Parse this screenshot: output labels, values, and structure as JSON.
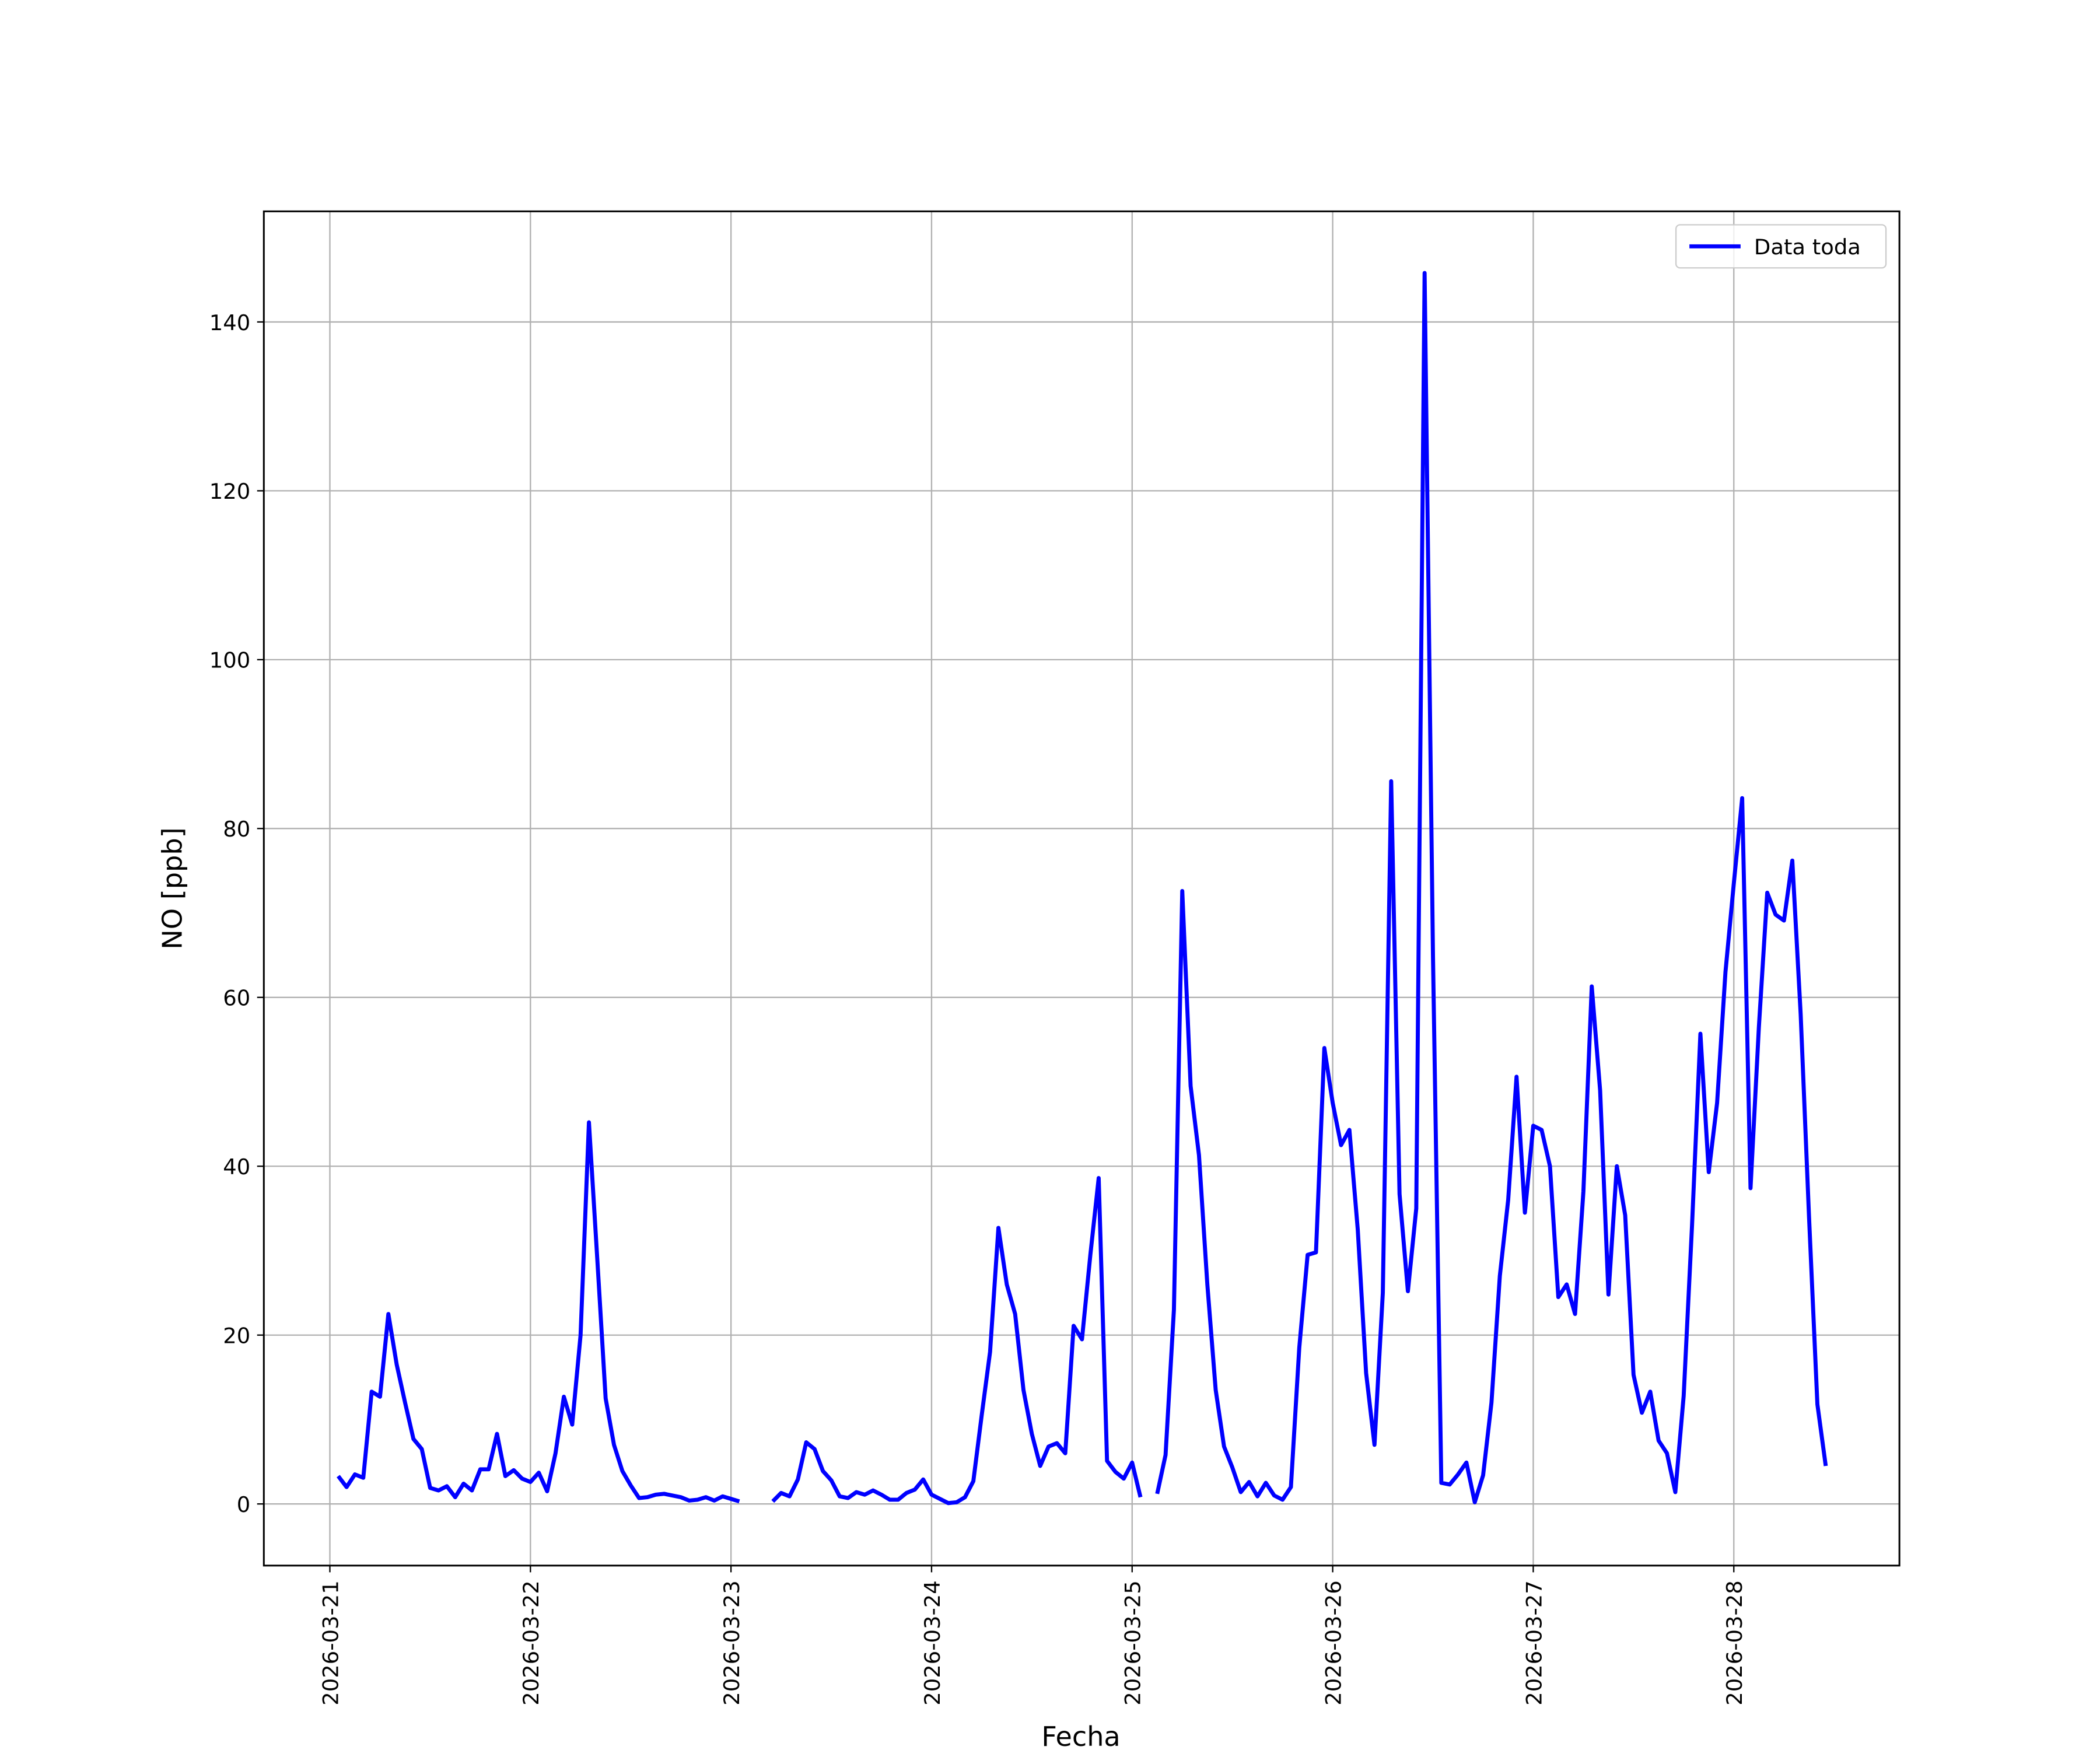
{
  "chart_data": {
    "type": "line",
    "xlabel": "Fecha",
    "ylabel": "NO [ppb]",
    "x": [
      "2026-03-21 01:00",
      "2026-03-21 02:00",
      "2026-03-21 03:00",
      "2026-03-21 04:00",
      "2026-03-21 05:00",
      "2026-03-21 06:00",
      "2026-03-21 07:00",
      "2026-03-21 08:00",
      "2026-03-21 09:00",
      "2026-03-21 10:00",
      "2026-03-21 11:00",
      "2026-03-21 12:00",
      "2026-03-21 13:00",
      "2026-03-21 14:00",
      "2026-03-21 15:00",
      "2026-03-21 16:00",
      "2026-03-21 17:00",
      "2026-03-21 18:00",
      "2026-03-21 19:00",
      "2026-03-21 20:00",
      "2026-03-21 21:00",
      "2026-03-21 22:00",
      "2026-03-21 23:00",
      "2026-03-22 00:00",
      "2026-03-22 01:00",
      "2026-03-22 02:00",
      "2026-03-22 03:00",
      "2026-03-22 04:00",
      "2026-03-22 05:00",
      "2026-03-22 06:00",
      "2026-03-22 07:00",
      "2026-03-22 08:00",
      "2026-03-22 09:00",
      "2026-03-22 10:00",
      "2026-03-22 11:00",
      "2026-03-22 12:00",
      "2026-03-22 13:00",
      "2026-03-22 14:00",
      "2026-03-22 15:00",
      "2026-03-22 16:00",
      "2026-03-22 17:00",
      "2026-03-22 18:00",
      "2026-03-22 19:00",
      "2026-03-22 20:00",
      "2026-03-22 21:00",
      "2026-03-22 22:00",
      "2026-03-22 23:00",
      "2026-03-23 00:00",
      "2026-03-23 01:00",
      "2026-03-23 02:00",
      "2026-03-23 03:00",
      "2026-03-23 04:00",
      "2026-03-23 05:00",
      "2026-03-23 06:00",
      "2026-03-23 07:00",
      "2026-03-23 08:00",
      "2026-03-23 09:00",
      "2026-03-23 10:00",
      "2026-03-23 11:00",
      "2026-03-23 12:00",
      "2026-03-23 13:00",
      "2026-03-23 14:00",
      "2026-03-23 15:00",
      "2026-03-23 16:00",
      "2026-03-23 17:00",
      "2026-03-23 18:00",
      "2026-03-23 19:00",
      "2026-03-23 20:00",
      "2026-03-23 21:00",
      "2026-03-23 22:00",
      "2026-03-23 23:00",
      "2026-03-24 00:00",
      "2026-03-24 01:00",
      "2026-03-24 02:00",
      "2026-03-24 03:00",
      "2026-03-24 04:00",
      "2026-03-24 05:00",
      "2026-03-24 06:00",
      "2026-03-24 07:00",
      "2026-03-24 08:00",
      "2026-03-24 09:00",
      "2026-03-24 10:00",
      "2026-03-24 11:00",
      "2026-03-24 12:00",
      "2026-03-24 13:00",
      "2026-03-24 14:00",
      "2026-03-24 15:00",
      "2026-03-24 16:00",
      "2026-03-24 17:00",
      "2026-03-24 18:00",
      "2026-03-24 19:00",
      "2026-03-24 20:00",
      "2026-03-24 21:00",
      "2026-03-24 22:00",
      "2026-03-24 23:00",
      "2026-03-25 00:00",
      "2026-03-25 01:00",
      "2026-03-25 02:00",
      "2026-03-25 03:00",
      "2026-03-25 04:00",
      "2026-03-25 05:00",
      "2026-03-25 06:00",
      "2026-03-25 07:00",
      "2026-03-25 08:00",
      "2026-03-25 09:00",
      "2026-03-25 10:00",
      "2026-03-25 11:00",
      "2026-03-25 12:00",
      "2026-03-25 13:00",
      "2026-03-25 14:00",
      "2026-03-25 15:00",
      "2026-03-25 16:00",
      "2026-03-25 17:00",
      "2026-03-25 18:00",
      "2026-03-25 19:00",
      "2026-03-25 20:00",
      "2026-03-25 21:00",
      "2026-03-25 22:00",
      "2026-03-25 23:00",
      "2026-03-26 00:00",
      "2026-03-26 01:00",
      "2026-03-26 02:00",
      "2026-03-26 03:00",
      "2026-03-26 04:00",
      "2026-03-26 05:00",
      "2026-03-26 06:00",
      "2026-03-26 07:00",
      "2026-03-26 08:00",
      "2026-03-26 09:00",
      "2026-03-26 10:00",
      "2026-03-26 11:00",
      "2026-03-26 12:00",
      "2026-03-26 13:00",
      "2026-03-26 14:00",
      "2026-03-26 15:00",
      "2026-03-26 16:00",
      "2026-03-26 17:00",
      "2026-03-26 18:00",
      "2026-03-26 19:00",
      "2026-03-26 20:00",
      "2026-03-26 21:00",
      "2026-03-26 22:00",
      "2026-03-26 23:00",
      "2026-03-27 00:00",
      "2026-03-27 01:00",
      "2026-03-27 02:00",
      "2026-03-27 03:00",
      "2026-03-27 04:00",
      "2026-03-27 05:00",
      "2026-03-27 06:00",
      "2026-03-27 07:00",
      "2026-03-27 08:00",
      "2026-03-27 09:00",
      "2026-03-27 10:00",
      "2026-03-27 11:00",
      "2026-03-27 12:00",
      "2026-03-27 13:00",
      "2026-03-27 14:00",
      "2026-03-27 15:00",
      "2026-03-27 16:00",
      "2026-03-27 17:00",
      "2026-03-27 18:00",
      "2026-03-27 19:00",
      "2026-03-27 20:00",
      "2026-03-27 21:00",
      "2026-03-27 22:00",
      "2026-03-27 23:00",
      "2026-03-28 00:00",
      "2026-03-28 01:00",
      "2026-03-28 02:00",
      "2026-03-28 03:00",
      "2026-03-28 04:00",
      "2026-03-28 05:00",
      "2026-03-28 06:00",
      "2026-03-28 07:00",
      "2026-03-28 08:00",
      "2026-03-28 09:00",
      "2026-03-28 10:00",
      "2026-03-28 11:00"
    ],
    "series": [
      {
        "name": "Data toda",
        "color": "#0000ff",
        "values": [
          3.3,
          2.0,
          3.5,
          3.1,
          13.3,
          12.7,
          22.5,
          16.5,
          12,
          7.7,
          6.5,
          1.9,
          1.6,
          2.1,
          0.8,
          2.4,
          1.6,
          4.1,
          4.1,
          8.3,
          3.3,
          4.0,
          3.0,
          2.6,
          3.7,
          1.5,
          6,
          12.7,
          9.4,
          20,
          45.2,
          29,
          12.5,
          7,
          3.9,
          2.2,
          0.7,
          0.8,
          1.1,
          1.2,
          1.0,
          0.8,
          0.4,
          0.5,
          0.8,
          0.4,
          0.9,
          0.6,
          0.3,
          null,
          null,
          null,
          0.3,
          1.3,
          0.9,
          2.9,
          7.3,
          6.5,
          3.9,
          2.8,
          0.9,
          0.7,
          1.4,
          1.1,
          1.6,
          1.1,
          0.5,
          0.5,
          1.3,
          1.7,
          2.9,
          1.1,
          0.6,
          0.1,
          0.2,
          0.8,
          2.7,
          10.5,
          18,
          32.7,
          26,
          22.5,
          13.5,
          8.3,
          4.5,
          6.8,
          7.2,
          6,
          21.1,
          19.5,
          29.5,
          38.6,
          5.1,
          3.8,
          3,
          4.9,
          0.8,
          null,
          1.2,
          5.8,
          23,
          72.6,
          49.5,
          41.3,
          26,
          13.5,
          6.8,
          4.3,
          1.4,
          2.6,
          0.9,
          2.5,
          1,
          0.5,
          2,
          18.5,
          29.5,
          29.8,
          54,
          47.5,
          42.5,
          44.3,
          32.5,
          15.5,
          7,
          25,
          85.6,
          36.7,
          25.2,
          35,
          145.8,
          65,
          2.5,
          2.3,
          3.5,
          4.9,
          0.2,
          3.4,
          12,
          27,
          36,
          50.6,
          34.5,
          44.8,
          44.3,
          40,
          24.5,
          26,
          22.5,
          37,
          61.3,
          49,
          24.8,
          40,
          34.2,
          15.3,
          10.8,
          13.3,
          7.5,
          6,
          1.4,
          12.8,
          33,
          55.7,
          39.3,
          47.5,
          63,
          73.5,
          83.6,
          37.4,
          56.5,
          72.4,
          69.8,
          69.1,
          76.2,
          58,
          34,
          11.8,
          4.5
        ]
      }
    ],
    "xlim": [
      "2026-03-20 16:06",
      "2026-03-28 19:49"
    ],
    "xticks": [
      "2026-03-21",
      "2026-03-22",
      "2026-03-23",
      "2026-03-24",
      "2026-03-25",
      "2026-03-26",
      "2026-03-27",
      "2026-03-28"
    ],
    "ylim": [
      -7.3,
      153.1
    ],
    "yticks": [
      0,
      20,
      40,
      60,
      80,
      100,
      120,
      140
    ],
    "grid": true,
    "legend": "upper right"
  }
}
